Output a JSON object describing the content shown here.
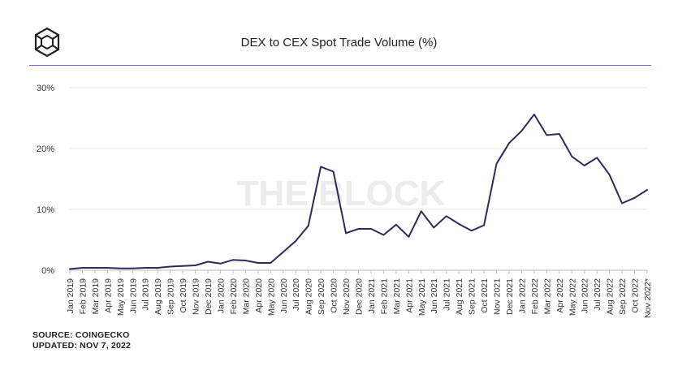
{
  "header": {
    "logo_icon": "the-block-cube-logo",
    "title": "DEX to CEX Spot Trade Volume (%)"
  },
  "watermark": "THE BLOCK",
  "footer": {
    "source": "SOURCE: COINGECKO",
    "updated": "UPDATED: NOV 7, 2022"
  },
  "colors": {
    "line": "#2e2a5c",
    "accent_rule": "#9b4fd3",
    "grid": "#e6e6e6",
    "watermark": "#ececec"
  },
  "chart_data": {
    "type": "line",
    "title": "DEX to CEX Spot Trade Volume (%)",
    "xlabel": "",
    "ylabel": "",
    "ylim": [
      0,
      30
    ],
    "y_ticks": [
      0,
      10,
      20,
      30
    ],
    "y_tick_labels": [
      "0%",
      "10%",
      "20%",
      "30%"
    ],
    "grid": true,
    "legend": "none",
    "categories": [
      "Jan 2019",
      "Feb 2019",
      "Mar 2019",
      "Apr 2019",
      "May 2019",
      "Jun 2019",
      "Jul 2019",
      "Aug 2019",
      "Sep 2019",
      "Oct 2019",
      "Nov 2019",
      "Dec 2019",
      "Jan 2020",
      "Feb 2020",
      "Mar 2020",
      "Apr 2020",
      "May 2020",
      "Jun 2020",
      "Jul 2020",
      "Aug 2020",
      "Sep 2020",
      "Oct 2020",
      "Nov 2020",
      "Dec 2020",
      "Jan 2021",
      "Feb 2021",
      "Mar 2021",
      "Apr 2021",
      "May 2021",
      "Jun 2021",
      "Jul 2021",
      "Aug 2021",
      "Sep 2021",
      "Oct 2021",
      "Nov 2021",
      "Dec 2021",
      "Jan 2022",
      "Feb 2022",
      "Mar 2022",
      "Apr 2022",
      "May 2022",
      "Jun 2022",
      "Jul 2022",
      "Aug 2022",
      "Sep 2022",
      "Oct 2022",
      "Nov 2022*"
    ],
    "values": [
      0.2,
      0.4,
      0.4,
      0.4,
      0.3,
      0.3,
      0.4,
      0.4,
      0.6,
      0.7,
      0.8,
      1.4,
      1.1,
      1.7,
      1.6,
      1.2,
      1.2,
      3.0,
      4.8,
      7.3,
      17.0,
      16.2,
      6.1,
      6.8,
      6.8,
      5.8,
      7.5,
      5.5,
      9.7,
      7.0,
      8.9,
      7.6,
      6.5,
      7.4,
      17.5,
      20.9,
      22.9,
      25.6,
      22.2,
      22.4,
      18.7,
      17.2,
      18.5,
      15.7,
      11.0,
      11.9,
      13.2
    ]
  }
}
